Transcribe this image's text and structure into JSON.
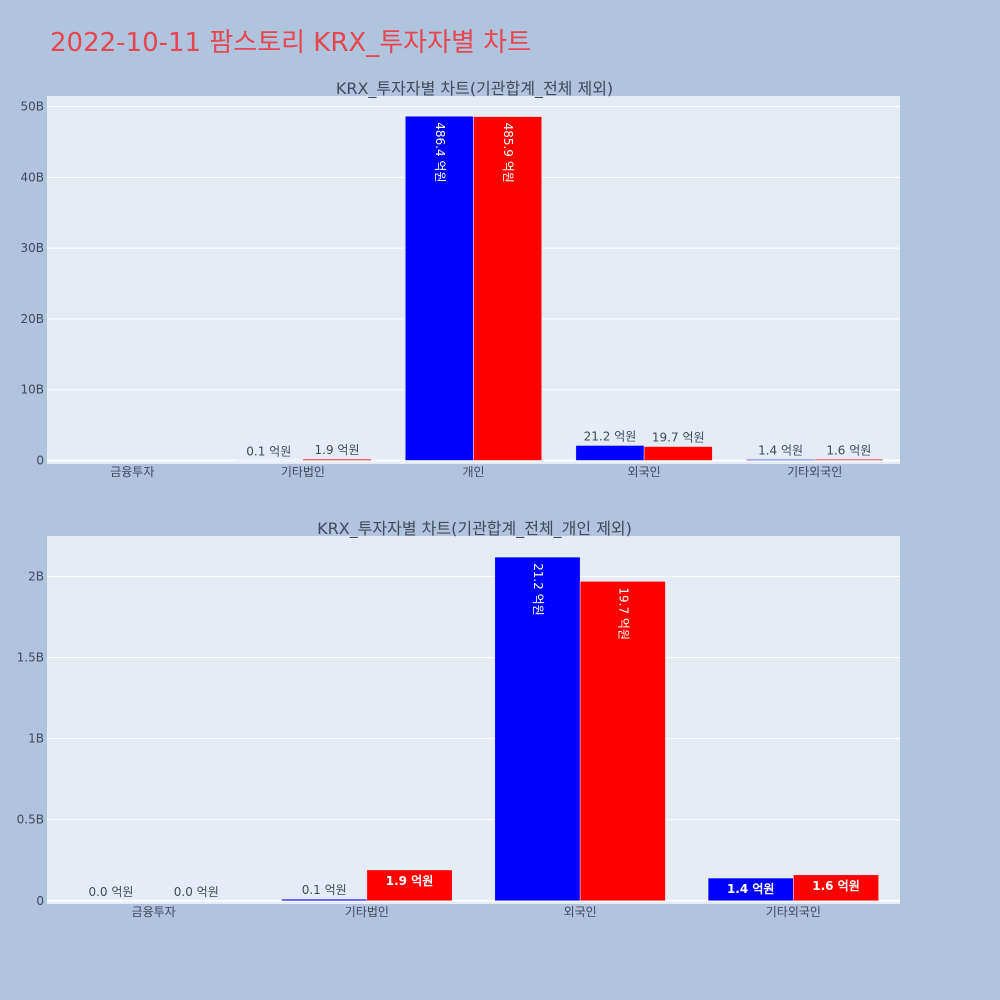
{
  "page": {
    "title": "2022-10-11 팜스토리 KRX_투자자별 차트",
    "title_color": "#e8464e",
    "background": "#b0c4de"
  },
  "chart_data": [
    {
      "type": "bar",
      "title": "KRX_투자자별 차트(기관합계_전체 제외)",
      "categories": [
        "금융투자",
        "기타법인",
        "개인",
        "외국인",
        "기타외국인"
      ],
      "series": [
        {
          "color": "#0000ff",
          "values": [
            0,
            10000000,
            48640000000,
            2120000000,
            140000000
          ]
        },
        {
          "color": "#ff0000",
          "values": [
            0,
            190000000,
            48590000000,
            1970000000,
            160000000
          ]
        }
      ],
      "labels": [
        [
          "",
          "0.1 억원",
          "486.4 억원",
          "21.2 억원",
          "1.4 억원"
        ],
        [
          "",
          "1.9 억원",
          "485.9 억원",
          "19.7 억원",
          "1.6 억원"
        ]
      ],
      "yticks": [
        0,
        10000000000,
        20000000000,
        30000000000,
        40000000000,
        50000000000
      ],
      "yticklabels": [
        "0",
        "10B",
        "20B",
        "30B",
        "40B",
        "50B"
      ],
      "ylim": [
        -500000000,
        51500000000
      ],
      "grid": true,
      "plot_bg": "#e5ecf6"
    },
    {
      "type": "bar",
      "title": "KRX_투자자별 차트(기관합계_전체_개인 제외)",
      "categories": [
        "금융투자",
        "기타법인",
        "외국인",
        "기타외국인"
      ],
      "series": [
        {
          "color": "#0000ff",
          "values": [
            0,
            10000000,
            2120000000,
            140000000
          ]
        },
        {
          "color": "#ff0000",
          "values": [
            0,
            190000000,
            1970000000,
            160000000
          ]
        }
      ],
      "labels": [
        [
          "0.0 억원",
          "0.1 억원",
          "21.2 억원",
          "1.4 억원"
        ],
        [
          "0.0 억원",
          "1.9 억원",
          "19.7 억원",
          "1.6 억원"
        ]
      ],
      "yticks": [
        0,
        500000000,
        1000000000,
        1500000000,
        2000000000
      ],
      "yticklabels": [
        "0",
        "0.5B",
        "1B",
        "1.5B",
        "2B"
      ],
      "ylim": [
        -20000000,
        2250000000
      ],
      "grid": true,
      "plot_bg": "#e5ecf6"
    }
  ]
}
